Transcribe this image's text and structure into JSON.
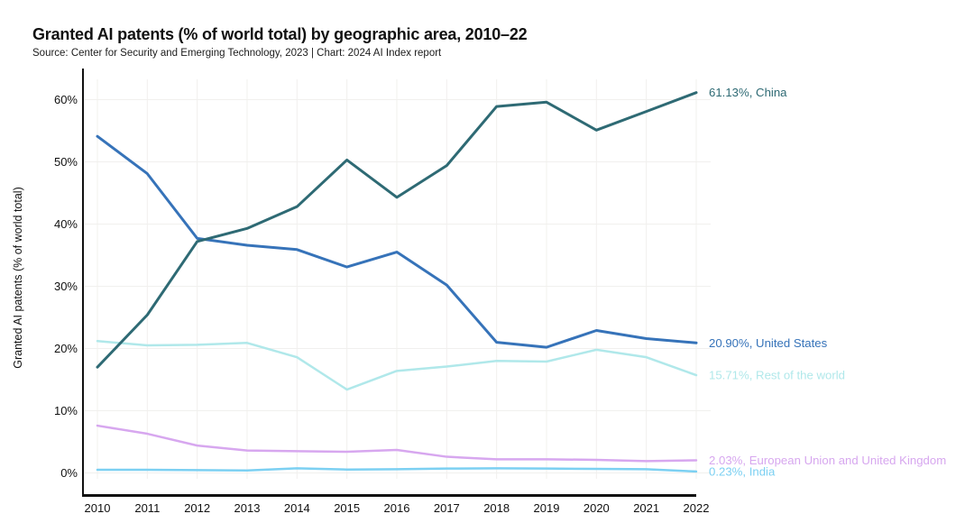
{
  "header": {
    "title": "Granted AI patents (% of world total) by geographic area, 2010–22",
    "subtitle": "Source: Center for Security and Emerging Technology, 2023 | Chart: 2024 AI Index report"
  },
  "chart_data": {
    "type": "line",
    "title": "Granted AI patents (% of world total) by geographic area, 2010–22",
    "subtitle": "Source: Center for Security and Emerging Technology, 2023 | Chart: 2024 AI Index report",
    "xlabel": "",
    "ylabel": "Granted AI patents (% of world total)",
    "x": [
      2010,
      2011,
      2012,
      2013,
      2014,
      2015,
      2016,
      2017,
      2018,
      2019,
      2020,
      2021,
      2022
    ],
    "xtick_labels": [
      "2010",
      "2011",
      "2012",
      "2013",
      "2014",
      "2015",
      "2016",
      "2017",
      "2018",
      "2019",
      "2020",
      "2021",
      "2022"
    ],
    "ylim": [
      0,
      60
    ],
    "yticks": [
      {
        "v": 0,
        "label": "0%"
      },
      {
        "v": 10,
        "label": "10%"
      },
      {
        "v": 20,
        "label": "20%"
      },
      {
        "v": 30,
        "label": "30%"
      },
      {
        "v": 40,
        "label": "40%"
      },
      {
        "v": 50,
        "label": "50%"
      },
      {
        "v": 60,
        "label": "60%"
      }
    ],
    "grid": true,
    "grid_color": "#f1f0ee",
    "axis_color": "#111111",
    "text_color": "#111111",
    "legend_position": "end-of-line labels, right side",
    "series": [
      {
        "name": "Rest of the world",
        "color": "#b0e8ea",
        "stroke_width": 2.5,
        "end_label": "15.71%, Rest of the world",
        "values": [
          21.2,
          20.5,
          20.6,
          20.9,
          18.6,
          13.4,
          16.4,
          17.1,
          18.0,
          17.9,
          19.8,
          18.6,
          15.71
        ]
      },
      {
        "name": "European Union and United Kingdom",
        "color": "#d7a7ef",
        "stroke_width": 2.5,
        "end_label": "2.03%, European Union and United Kingdom",
        "values": [
          7.6,
          6.3,
          4.4,
          3.6,
          3.5,
          3.4,
          3.7,
          2.6,
          2.2,
          2.2,
          2.1,
          1.9,
          2.03
        ]
      },
      {
        "name": "India",
        "color": "#7cd0f2",
        "stroke_width": 2.5,
        "end_label": "0.23%, India",
        "values": [
          0.5,
          0.5,
          0.45,
          0.4,
          0.75,
          0.55,
          0.6,
          0.7,
          0.75,
          0.7,
          0.65,
          0.6,
          0.23
        ]
      },
      {
        "name": "United States",
        "color": "#3673b9",
        "stroke_width": 3,
        "end_label": "20.90%, United States",
        "values": [
          54.1,
          48.1,
          37.7,
          36.6,
          35.9,
          33.1,
          35.5,
          30.2,
          21.0,
          20.2,
          22.9,
          21.6,
          20.9
        ]
      },
      {
        "name": "China",
        "color": "#2e6a74",
        "stroke_width": 3,
        "end_label": "61.13%, China",
        "values": [
          17.0,
          25.4,
          37.2,
          39.3,
          42.8,
          50.3,
          44.3,
          49.4,
          58.9,
          59.6,
          55.1,
          58.1,
          61.13
        ]
      }
    ]
  }
}
